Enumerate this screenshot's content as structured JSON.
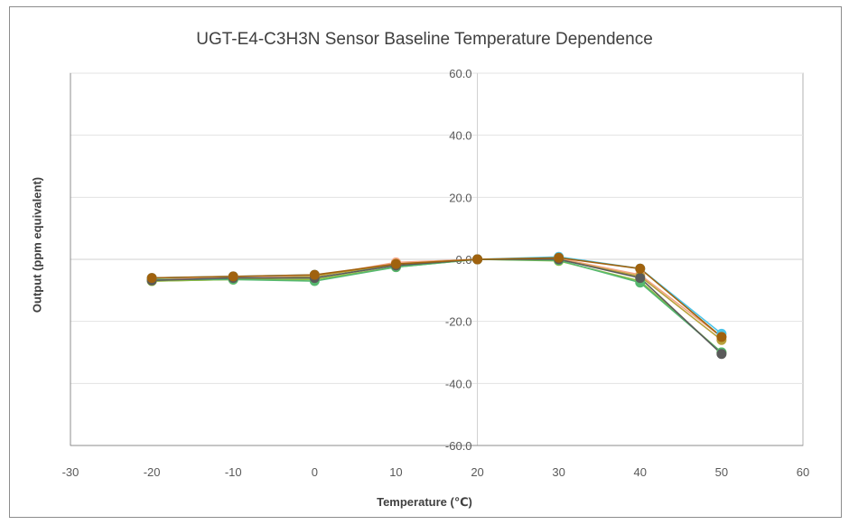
{
  "chart_data": {
    "type": "line",
    "title": "UGT-E4-C3H3N Sensor Baseline  Temperature Dependence",
    "xlabel": "Temperature (℃)",
    "ylabel": "Output (ppm equivalent)",
    "xlim": [
      -30,
      60
    ],
    "ylim": [
      -60,
      60
    ],
    "x_ticks": [
      "-30",
      "-20",
      "-10",
      "0",
      "10",
      "20",
      "30",
      "40",
      "50",
      "60"
    ],
    "y_ticks": [
      "60.0",
      "40.0",
      "20.0",
      "0.0",
      "-20.0",
      "-40.0",
      "-60.0"
    ],
    "grid": true,
    "legend": "none",
    "x": [
      -20,
      -10,
      0,
      10,
      20,
      30,
      40,
      50
    ],
    "series": [
      {
        "color": "#4bc4e8",
        "values": [
          -6.0,
          -5.5,
          -5.0,
          -2.0,
          0.0,
          0.8,
          -3.0,
          -24.0
        ]
      },
      {
        "color": "#f4a582",
        "values": [
          -6.5,
          -6.0,
          -5.5,
          -1.0,
          0.0,
          0.3,
          -5.0,
          -25.0
        ]
      },
      {
        "color": "#b8a23c",
        "values": [
          -7.0,
          -6.5,
          -5.5,
          -1.5,
          0.0,
          0.0,
          -5.5,
          -26.0
        ]
      },
      {
        "color": "#8fbf3f",
        "values": [
          -7.0,
          -6.5,
          -6.5,
          -2.5,
          0.0,
          -0.5,
          -7.0,
          -30.0
        ]
      },
      {
        "color": "#56b870",
        "values": [
          -6.5,
          -6.5,
          -7.0,
          -2.5,
          0.0,
          -0.3,
          -7.5,
          -30.0
        ]
      },
      {
        "color": "#5a5a5a",
        "values": [
          -6.8,
          -6.0,
          -6.0,
          -2.0,
          0.0,
          0.0,
          -6.0,
          -30.5
        ]
      },
      {
        "color": "#a0620e",
        "values": [
          -6.0,
          -5.5,
          -5.0,
          -1.5,
          0.0,
          0.5,
          -3.0,
          -25.0
        ]
      }
    ]
  }
}
